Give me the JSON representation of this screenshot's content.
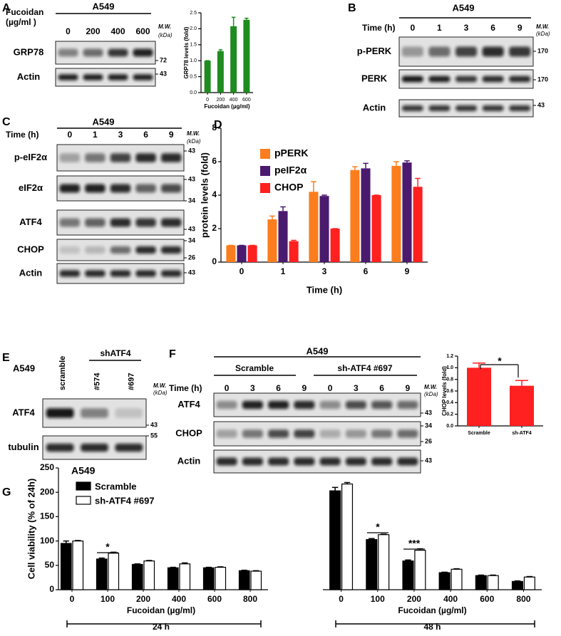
{
  "panel_letters": [
    "A",
    "B",
    "C",
    "D",
    "E",
    "F",
    "G"
  ],
  "blots": [
    {
      "cell": "A549",
      "condition": [
        "Fucoidan",
        "(µg/ml )"
      ],
      "lanes": [
        "0",
        "200",
        "400",
        "600"
      ],
      "mw": [
        "M.W.",
        "(kDa)"
      ],
      "rows": [
        {
          "label": "GRP78",
          "markers": [
            "72"
          ]
        },
        {
          "label": "Actin",
          "markers": [
            "43"
          ]
        }
      ]
    },
    {
      "cell": "A549",
      "condition": [
        "Time (h)"
      ],
      "lanes": [
        "0",
        "1",
        "3",
        "6",
        "9"
      ],
      "mw": [
        "M.W.",
        "(kDa)"
      ],
      "rows": [
        {
          "label": "p-PERK",
          "markers": [
            "170"
          ]
        },
        {
          "label": "PERK",
          "markers": [
            "170"
          ]
        },
        {
          "label": "Actin",
          "markers": [
            "43"
          ]
        }
      ]
    },
    {
      "cell": "A549",
      "condition": [
        "Time (h)"
      ],
      "lanes": [
        "0",
        "1",
        "3",
        "6",
        "9"
      ],
      "mw": [
        "M.W.",
        "(kDa)"
      ],
      "rows": [
        {
          "label": "p-eIF2α",
          "markers": [
            "43"
          ]
        },
        {
          "label": "eIF2α",
          "markers": [
            "43",
            "34"
          ]
        },
        {
          "label": "ATF4",
          "markers": [
            "43"
          ]
        },
        {
          "label": "CHOP",
          "markers": [
            "34",
            "26"
          ]
        },
        {
          "label": "Actin",
          "markers": [
            "43"
          ]
        }
      ]
    },
    {
      "cell": "A549",
      "group": "shATF4",
      "lanes": [
        "scramble",
        "#574",
        "#697"
      ],
      "mw": [
        "M.W.",
        "(kDa)"
      ],
      "rows": [
        {
          "label": "ATF4",
          "markers": [
            "43"
          ]
        },
        {
          "label": "tubulin",
          "markers": [
            "55"
          ]
        }
      ]
    },
    {
      "cell": "A549",
      "groups": [
        "Scramble",
        "sh-ATF4 #697"
      ],
      "condition": [
        "Time (h)"
      ],
      "lanes": [
        "0",
        "3",
        "6",
        "9",
        "0",
        "3",
        "6",
        "9"
      ],
      "mw": [
        "M.W.",
        "(kDa)"
      ],
      "rows": [
        {
          "label": "ATF4",
          "markers": [
            "43"
          ]
        },
        {
          "label": "CHOP",
          "markers": [
            "34",
            "26"
          ]
        },
        {
          "label": "Actin",
          "markers": [
            "43"
          ]
        }
      ]
    }
  ],
  "chart_data": [
    {
      "type": "bar",
      "ylabel": "GRP78 levels (fold)",
      "xlabel": "Fucoidan (µg/ml)",
      "categories": [
        "0",
        "200",
        "400",
        "600"
      ],
      "values": [
        1.0,
        1.3,
        2.08,
        2.28
      ],
      "errors": [
        0,
        0.04,
        0.28,
        0.05
      ],
      "color": "#1e8c1e",
      "ylim": [
        0,
        2.5
      ],
      "yticks": [
        {
          "value": 0,
          "label": "0.0"
        },
        0.5,
        {
          "value": 1,
          "label": "1.0"
        },
        1.5,
        {
          "value": 2,
          "label": "2.0"
        },
        2.5
      ]
    },
    {
      "type": "bar",
      "ylabel": "protein levels (fold)",
      "xlabel": "Time (h)",
      "categories": [
        "0",
        "1",
        "3",
        "6",
        "9"
      ],
      "series": [
        {
          "name": "pPERK",
          "color": "#fb7d1e",
          "values": [
            1,
            2.55,
            4.2,
            5.5,
            5.75
          ],
          "errors": [
            0,
            0.2,
            0.6,
            0.2,
            0.25
          ]
        },
        {
          "name": "peIF2α",
          "color": "#4a1a6e",
          "values": [
            1,
            3.05,
            3.95,
            5.6,
            5.95
          ],
          "errors": [
            0,
            0.25,
            0.05,
            0.3,
            0.1
          ]
        },
        {
          "name": "CHOP",
          "color": "#ff2020",
          "values": [
            1,
            1.25,
            2.0,
            4.0,
            4.5
          ],
          "errors": [
            0,
            0.05,
            0,
            0,
            0.5
          ]
        }
      ],
      "ylim": [
        0,
        8
      ],
      "yticks": [
        0,
        2,
        4,
        6,
        8
      ],
      "legend": "upper left"
    },
    {
      "type": "bar",
      "ylabel": "CHOP levels (fold)",
      "categories": [
        "Scramble",
        "sh-ATF4"
      ],
      "values": [
        1.0,
        0.69
      ],
      "errors": [
        0.08,
        0.09
      ],
      "color": "#ff2020",
      "ylim": [
        0,
        1.2
      ],
      "yticks": [
        {
          "value": 0,
          "label": "0.0"
        },
        0.2,
        0.4,
        0.6,
        0.8,
        {
          "value": 1,
          "label": "1.0"
        },
        1.2
      ],
      "annotations": [
        "*"
      ]
    },
    {
      "type": "bar",
      "title": "A549",
      "ylabel": "Cell viability (% of 24h)",
      "groups": [
        {
          "label": "24 h",
          "xlabel": "Fucoidan (µg/ml)",
          "categories": [
            "0",
            "100",
            "200",
            "400",
            "600",
            "800"
          ]
        },
        {
          "label": "48 h",
          "xlabel": "Fucoidan (µg/ml)",
          "categories": [
            "0",
            "100",
            "200",
            "400",
            "600",
            "800"
          ]
        }
      ],
      "series": [
        {
          "name": "Scramble",
          "color": "#000000",
          "values": [
            95,
            63,
            52,
            45,
            45,
            39,
            203,
            103,
            59,
            35,
            29,
            17
          ],
          "errors": [
            5,
            2,
            1,
            1,
            1,
            1,
            7,
            2,
            2,
            1,
            1,
            1
          ]
        },
        {
          "name": "sh-ATF4  #697",
          "color": "#ffffff",
          "values": [
            100,
            75,
            59,
            53,
            46,
            38,
            217,
            113,
            81,
            42,
            29,
            26
          ],
          "errors": [
            1,
            2,
            1,
            2,
            1,
            1,
            3,
            1,
            3,
            1,
            1,
            1
          ]
        }
      ],
      "ylim": [
        0,
        250
      ],
      "yticks": [
        0,
        50,
        100,
        150,
        200,
        250
      ],
      "legend": "upper left",
      "annotations": [
        "*",
        "*",
        "***"
      ]
    }
  ]
}
